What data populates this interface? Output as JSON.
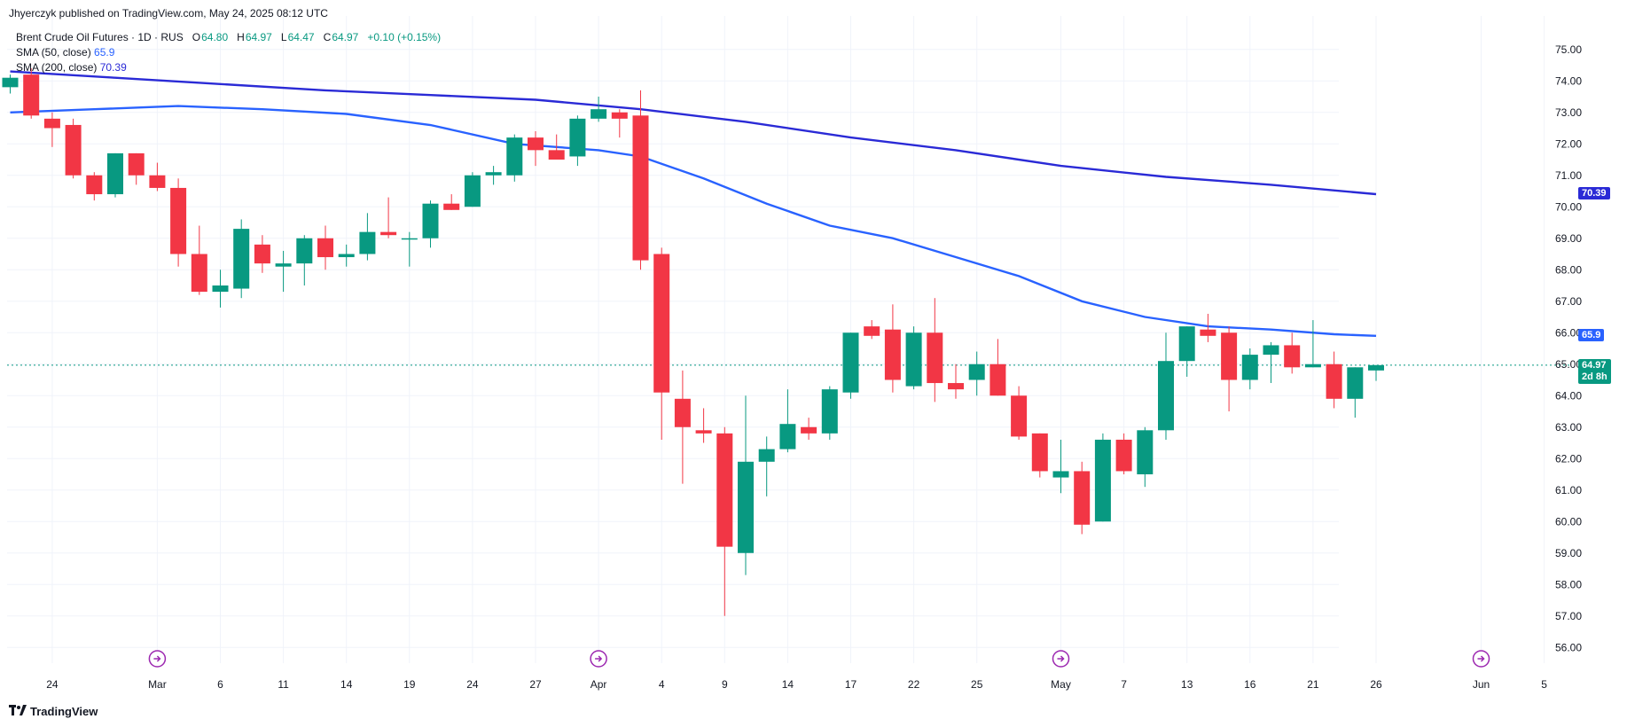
{
  "header": {
    "published": "Jhyerczyk published on TradingView.com, May 24, 2025 08:12 UTC"
  },
  "legend": {
    "symbol": "Brent Crude Oil Futures · 1D · RUS",
    "o_label": "O",
    "o_val": "64.80",
    "h_label": "H",
    "h_val": "64.97",
    "l_label": "L",
    "l_val": "64.47",
    "c_label": "C",
    "c_val": "64.97",
    "change": "+0.10 (+0.15%)",
    "sma50_label": "SMA (50, close)",
    "sma50_val": "65.9",
    "sma200_label": "SMA (200, close)",
    "sma200_val": "70.39"
  },
  "tags": {
    "sma200": "70.39",
    "sma50": "65.9",
    "last": "64.97",
    "countdown": "2d 8h"
  },
  "footer": {
    "brand": "TradingView"
  },
  "colors": {
    "up": "#089981",
    "down": "#f23645",
    "sma50": "#2962ff",
    "sma200": "#2a2ad6",
    "grid": "#f0f3fa",
    "axis_text": "#131722",
    "last_line": "#089981"
  },
  "chart_data": {
    "type": "candlestick",
    "title": "Brent Crude Oil Futures · 1D · RUS",
    "ylim": [
      55.5,
      75.5
    ],
    "y_ticks": [
      "75.00",
      "74.00",
      "73.00",
      "72.00",
      "71.00",
      "70.00",
      "69.00",
      "68.00",
      "67.00",
      "66.00",
      "65.00",
      "64.00",
      "63.00",
      "62.00",
      "61.00",
      "60.00",
      "59.00",
      "58.00",
      "57.00",
      "56.00"
    ],
    "x_ticks": [
      {
        "idx": 2,
        "label": "24"
      },
      {
        "idx": 7,
        "label": "Mar"
      },
      {
        "idx": 10,
        "label": "6"
      },
      {
        "idx": 13,
        "label": "11"
      },
      {
        "idx": 16,
        "label": "14"
      },
      {
        "idx": 19,
        "label": "19"
      },
      {
        "idx": 22,
        "label": "24"
      },
      {
        "idx": 25,
        "label": "27"
      },
      {
        "idx": 28,
        "label": "Apr"
      },
      {
        "idx": 31,
        "label": "4"
      },
      {
        "idx": 34,
        "label": "9"
      },
      {
        "idx": 37,
        "label": "14"
      },
      {
        "idx": 40,
        "label": "17"
      },
      {
        "idx": 43,
        "label": "22"
      },
      {
        "idx": 46,
        "label": "25"
      },
      {
        "idx": 50,
        "label": "May"
      },
      {
        "idx": 53,
        "label": "7"
      },
      {
        "idx": 56,
        "label": "13"
      },
      {
        "idx": 59,
        "label": "16"
      },
      {
        "idx": 62,
        "label": "21"
      },
      {
        "idx": 65,
        "label": "26"
      },
      {
        "idx": 70,
        "label": "Jun"
      },
      {
        "idx": 73,
        "label": "5"
      }
    ],
    "event_markers": [
      7,
      28,
      50,
      70
    ],
    "candles": [
      {
        "o": 73.8,
        "h": 74.2,
        "l": 73.6,
        "c": 74.1
      },
      {
        "o": 74.2,
        "h": 74.4,
        "l": 72.8,
        "c": 72.9
      },
      {
        "o": 72.8,
        "h": 73.0,
        "l": 71.9,
        "c": 72.5
      },
      {
        "o": 72.6,
        "h": 72.8,
        "l": 70.9,
        "c": 71.0
      },
      {
        "o": 71.0,
        "h": 71.1,
        "l": 70.2,
        "c": 70.4
      },
      {
        "o": 70.4,
        "h": 71.7,
        "l": 70.3,
        "c": 71.7
      },
      {
        "o": 71.7,
        "h": 71.7,
        "l": 70.7,
        "c": 71.0
      },
      {
        "o": 71.0,
        "h": 71.4,
        "l": 70.5,
        "c": 70.6
      },
      {
        "o": 70.6,
        "h": 70.9,
        "l": 68.1,
        "c": 68.5
      },
      {
        "o": 68.5,
        "h": 69.4,
        "l": 67.2,
        "c": 67.3
      },
      {
        "o": 67.3,
        "h": 68.0,
        "l": 66.8,
        "c": 67.5
      },
      {
        "o": 67.4,
        "h": 69.6,
        "l": 67.1,
        "c": 69.3
      },
      {
        "o": 68.8,
        "h": 69.1,
        "l": 67.9,
        "c": 68.2
      },
      {
        "o": 68.1,
        "h": 68.6,
        "l": 67.3,
        "c": 68.2
      },
      {
        "o": 68.2,
        "h": 69.1,
        "l": 67.5,
        "c": 69.0
      },
      {
        "o": 69.0,
        "h": 69.4,
        "l": 68.0,
        "c": 68.4
      },
      {
        "o": 68.4,
        "h": 68.8,
        "l": 68.1,
        "c": 68.5
      },
      {
        "o": 68.5,
        "h": 69.8,
        "l": 68.3,
        "c": 69.2
      },
      {
        "o": 69.2,
        "h": 70.3,
        "l": 69.0,
        "c": 69.1
      },
      {
        "o": 69.0,
        "h": 69.2,
        "l": 68.1,
        "c": 69.0
      },
      {
        "o": 69.0,
        "h": 70.2,
        "l": 68.7,
        "c": 70.1
      },
      {
        "o": 70.1,
        "h": 70.4,
        "l": 69.9,
        "c": 69.9
      },
      {
        "o": 70.0,
        "h": 71.1,
        "l": 70.0,
        "c": 71.0
      },
      {
        "o": 71.0,
        "h": 71.3,
        "l": 70.7,
        "c": 71.1
      },
      {
        "o": 71.0,
        "h": 72.3,
        "l": 70.8,
        "c": 72.2
      },
      {
        "o": 72.2,
        "h": 72.4,
        "l": 71.3,
        "c": 71.8
      },
      {
        "o": 71.8,
        "h": 72.3,
        "l": 71.5,
        "c": 71.5
      },
      {
        "o": 71.6,
        "h": 72.9,
        "l": 71.3,
        "c": 72.8
      },
      {
        "o": 72.8,
        "h": 73.5,
        "l": 72.7,
        "c": 73.1
      },
      {
        "o": 73.0,
        "h": 73.1,
        "l": 72.2,
        "c": 72.8
      },
      {
        "o": 72.9,
        "h": 73.7,
        "l": 68.0,
        "c": 68.3
      },
      {
        "o": 68.5,
        "h": 68.7,
        "l": 62.6,
        "c": 64.1
      },
      {
        "o": 63.9,
        "h": 64.8,
        "l": 61.2,
        "c": 63.0
      },
      {
        "o": 62.9,
        "h": 63.6,
        "l": 62.5,
        "c": 62.8
      },
      {
        "o": 62.8,
        "h": 63.0,
        "l": 57.0,
        "c": 59.2
      },
      {
        "o": 59.0,
        "h": 64.0,
        "l": 58.3,
        "c": 61.9
      },
      {
        "o": 61.9,
        "h": 62.7,
        "l": 60.8,
        "c": 62.3
      },
      {
        "o": 62.3,
        "h": 64.2,
        "l": 62.2,
        "c": 63.1
      },
      {
        "o": 63.0,
        "h": 63.3,
        "l": 62.6,
        "c": 62.8
      },
      {
        "o": 62.8,
        "h": 64.3,
        "l": 62.6,
        "c": 64.2
      },
      {
        "o": 64.1,
        "h": 66.0,
        "l": 63.9,
        "c": 66.0
      },
      {
        "o": 66.2,
        "h": 66.4,
        "l": 65.8,
        "c": 65.9
      },
      {
        "o": 66.1,
        "h": 66.9,
        "l": 64.1,
        "c": 64.5
      },
      {
        "o": 64.3,
        "h": 66.2,
        "l": 64.2,
        "c": 66.0
      },
      {
        "o": 66.0,
        "h": 67.1,
        "l": 63.8,
        "c": 64.4
      },
      {
        "o": 64.4,
        "h": 65.0,
        "l": 63.9,
        "c": 64.2
      },
      {
        "o": 64.5,
        "h": 65.4,
        "l": 64.0,
        "c": 65.0
      },
      {
        "o": 65.0,
        "h": 65.8,
        "l": 64.0,
        "c": 64.0
      },
      {
        "o": 64.0,
        "h": 64.3,
        "l": 62.6,
        "c": 62.7
      },
      {
        "o": 62.8,
        "h": 62.8,
        "l": 61.4,
        "c": 61.6
      },
      {
        "o": 61.4,
        "h": 62.6,
        "l": 60.9,
        "c": 61.6
      },
      {
        "o": 61.6,
        "h": 61.9,
        "l": 59.6,
        "c": 59.9
      },
      {
        "o": 60.0,
        "h": 62.8,
        "l": 60.0,
        "c": 62.6
      },
      {
        "o": 62.6,
        "h": 62.8,
        "l": 61.5,
        "c": 61.6
      },
      {
        "o": 61.5,
        "h": 63.0,
        "l": 61.1,
        "c": 62.9
      },
      {
        "o": 62.9,
        "h": 66.0,
        "l": 62.6,
        "c": 65.1
      },
      {
        "o": 65.1,
        "h": 66.2,
        "l": 64.6,
        "c": 66.2
      },
      {
        "o": 66.1,
        "h": 66.6,
        "l": 65.7,
        "c": 65.9
      },
      {
        "o": 66.0,
        "h": 66.2,
        "l": 63.5,
        "c": 64.5
      },
      {
        "o": 64.5,
        "h": 65.5,
        "l": 64.2,
        "c": 65.3
      },
      {
        "o": 65.3,
        "h": 65.7,
        "l": 64.4,
        "c": 65.6
      },
      {
        "o": 65.6,
        "h": 66.0,
        "l": 64.7,
        "c": 64.9
      },
      {
        "o": 64.9,
        "h": 66.4,
        "l": 64.9,
        "c": 65.0
      },
      {
        "o": 65.0,
        "h": 65.4,
        "l": 63.6,
        "c": 63.9
      },
      {
        "o": 63.9,
        "h": 64.9,
        "l": 63.3,
        "c": 64.9
      },
      {
        "o": 64.8,
        "h": 64.97,
        "l": 64.47,
        "c": 64.97
      }
    ],
    "sma50": [
      [
        0,
        73.0
      ],
      [
        4,
        73.1
      ],
      [
        8,
        73.2
      ],
      [
        12,
        73.1
      ],
      [
        16,
        72.95
      ],
      [
        20,
        72.6
      ],
      [
        24,
        72.0
      ],
      [
        28,
        71.8
      ],
      [
        30,
        71.6
      ],
      [
        33,
        70.9
      ],
      [
        36,
        70.1
      ],
      [
        39,
        69.4
      ],
      [
        42,
        69.0
      ],
      [
        45,
        68.4
      ],
      [
        48,
        67.8
      ],
      [
        51,
        67.0
      ],
      [
        54,
        66.5
      ],
      [
        57,
        66.2
      ],
      [
        60,
        66.1
      ],
      [
        63,
        65.95
      ],
      [
        65,
        65.9
      ]
    ],
    "sma200": [
      [
        0,
        74.3
      ],
      [
        5,
        74.1
      ],
      [
        10,
        73.9
      ],
      [
        15,
        73.7
      ],
      [
        20,
        73.55
      ],
      [
        25,
        73.4
      ],
      [
        30,
        73.1
      ],
      [
        35,
        72.7
      ],
      [
        40,
        72.2
      ],
      [
        45,
        71.8
      ],
      [
        50,
        71.3
      ],
      [
        55,
        70.95
      ],
      [
        60,
        70.7
      ],
      [
        65,
        70.4
      ]
    ]
  }
}
